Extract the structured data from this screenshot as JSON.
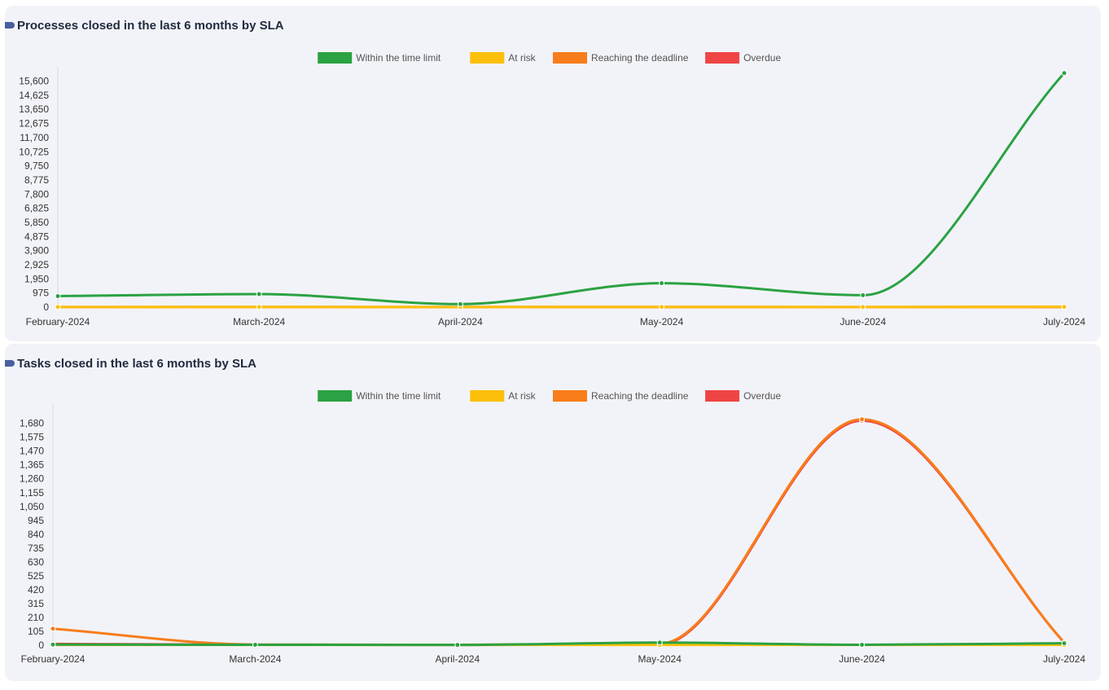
{
  "chart_data": [
    {
      "type": "line",
      "title": "Processes closed in the last 6 months by SLA",
      "categories": [
        "February-2024",
        "March-2024",
        "April-2024",
        "May-2024",
        "June-2024",
        "July-2024"
      ],
      "ylim": [
        0,
        16250
      ],
      "yticks": [
        0,
        975,
        1950,
        2925,
        3900,
        4875,
        5850,
        6825,
        7800,
        8775,
        9750,
        10725,
        11700,
        12675,
        13650,
        14625,
        15600
      ],
      "ytick_labels": [
        "0",
        "975",
        "1,950",
        "2,925",
        "3,900",
        "4,875",
        "5,850",
        "6,825",
        "7,800",
        "8,775",
        "9,750",
        "10,725",
        "11,700",
        "12,675",
        "13,650",
        "14,625",
        "15,600"
      ],
      "grid": false,
      "legend_position": "top-center",
      "series": [
        {
          "name": "Within the time limit",
          "color": "#2ba243",
          "values": [
            760,
            900,
            210,
            1650,
            820,
            16150
          ]
        },
        {
          "name": "At risk",
          "color": "#fcc00b",
          "values": [
            5,
            10,
            8,
            15,
            8,
            20
          ]
        },
        {
          "name": "Reaching the deadline",
          "color": "#f87d1a",
          "values": [
            5,
            8,
            5,
            10,
            5,
            15
          ]
        },
        {
          "name": "Overdue",
          "color": "#ef4444",
          "values": [
            2,
            5,
            3,
            5,
            3,
            10
          ]
        }
      ]
    },
    {
      "type": "line",
      "title": "Tasks closed in the last 6 months by SLA",
      "categories": [
        "February-2024",
        "March-2024",
        "April-2024",
        "May-2024",
        "June-2024",
        "July-2024"
      ],
      "ylim": [
        0,
        1795
      ],
      "yticks": [
        0,
        105,
        210,
        315,
        420,
        525,
        630,
        735,
        840,
        945,
        1050,
        1155,
        1260,
        1365,
        1470,
        1575,
        1680
      ],
      "ytick_labels": [
        "0",
        "105",
        "210",
        "315",
        "420",
        "525",
        "630",
        "735",
        "840",
        "945",
        "1,050",
        "1,155",
        "1,260",
        "1,365",
        "1,470",
        "1,575",
        "1,680"
      ],
      "grid": false,
      "legend_position": "top-center",
      "series": [
        {
          "name": "Within the time limit",
          "color": "#2ba243",
          "values": [
            5,
            3,
            2,
            20,
            3,
            15
          ]
        },
        {
          "name": "At risk",
          "color": "#fcc00b",
          "values": [
            2,
            2,
            2,
            2,
            2,
            2
          ]
        },
        {
          "name": "Reaching the deadline",
          "color": "#f87d1a",
          "values": [
            125,
            5,
            3,
            10,
            1710,
            20
          ]
        },
        {
          "name": "Overdue",
          "color": "#ef4444",
          "values": [
            10,
            3,
            2,
            5,
            1700,
            20
          ]
        }
      ]
    }
  ]
}
